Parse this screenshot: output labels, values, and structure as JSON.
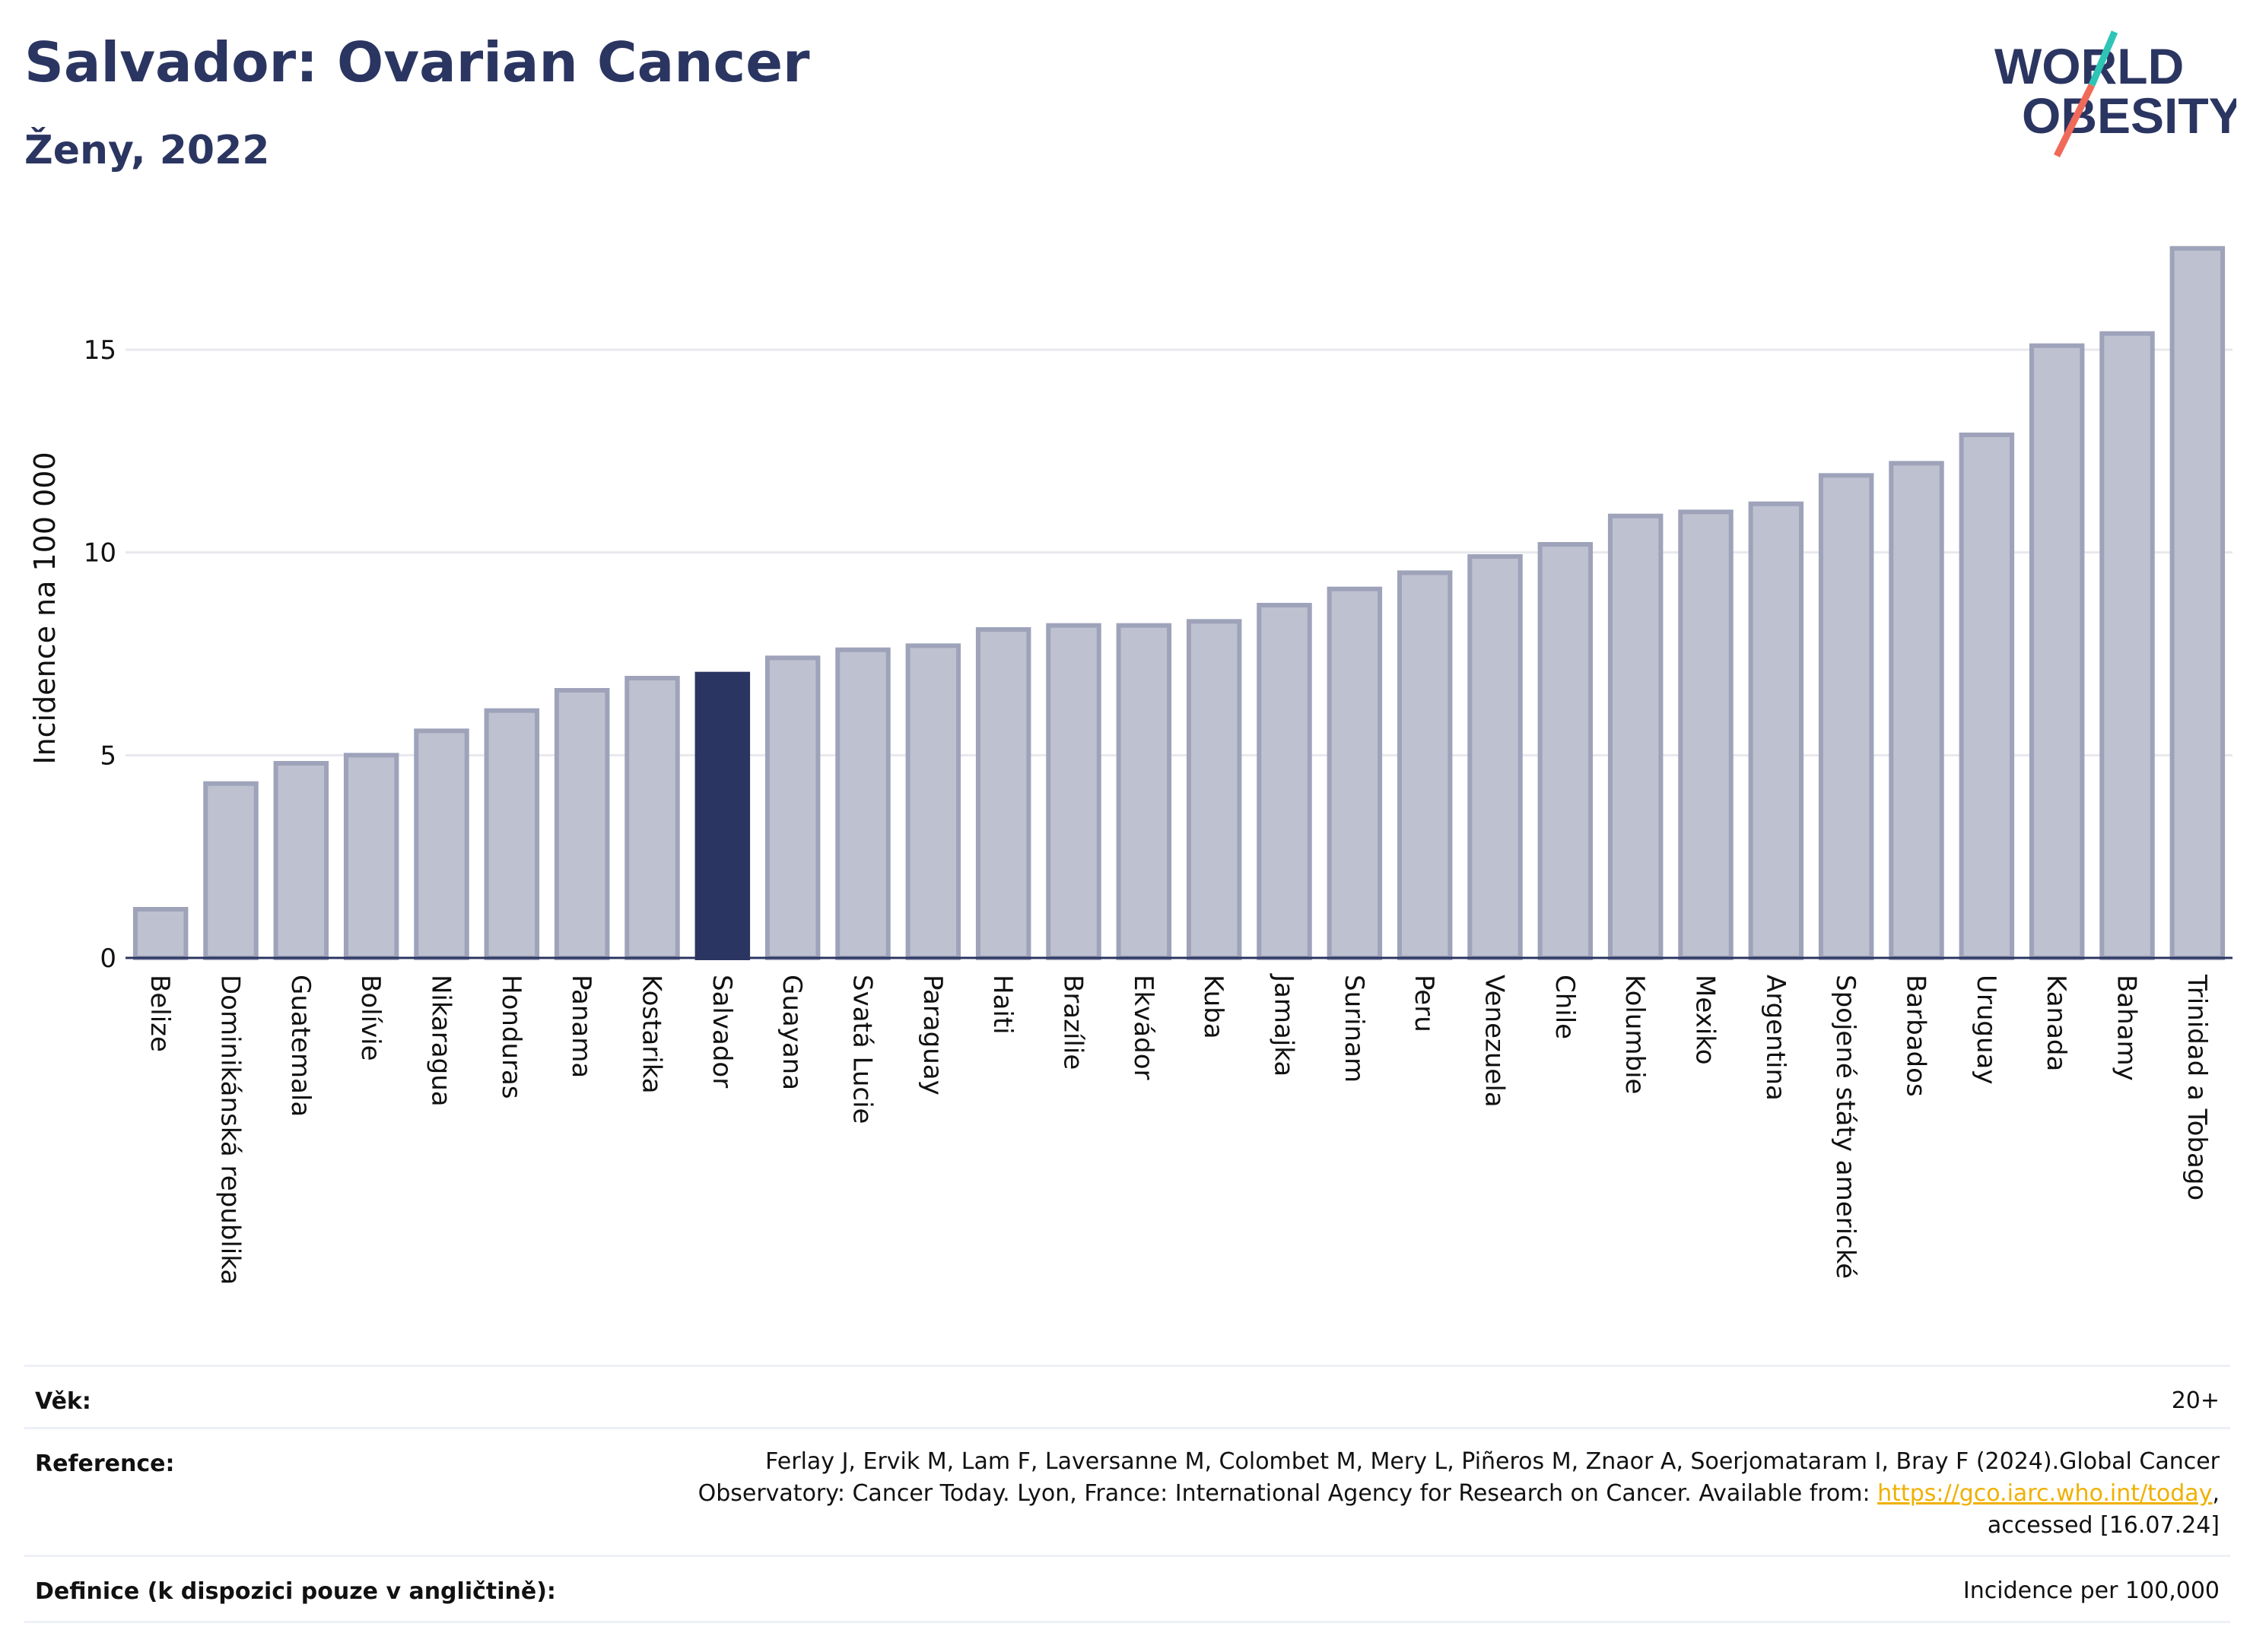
{
  "header": {
    "title": "Salvador: Ovarian Cancer",
    "subtitle": "Ženy, 2022",
    "logo_line1": "WORLD",
    "logo_line2": "OBESITY"
  },
  "chart_data": {
    "type": "bar",
    "ylabel": "Incidence na 100 000",
    "xlabel": "",
    "ylim": [
      0,
      18
    ],
    "yticks": [
      0,
      5,
      10,
      15
    ],
    "grid": true,
    "highlight_category": "Salvador",
    "colors": {
      "bar": "#bec1cf",
      "bar_border": "#9ea3ba",
      "highlight": "#2b3561",
      "grid": "#e8e8ee",
      "axis": "#2b3561"
    },
    "categories": [
      "Belize",
      "Dominikánská republika",
      "Guatemala",
      "Bolívie",
      "Nikaragua",
      "Honduras",
      "Panama",
      "Kostarika",
      "Salvador",
      "Guayana",
      "Svatá Lucie",
      "Paraguay",
      "Haiti",
      "Brazílie",
      "Ekvádor",
      "Kuba",
      "Jamajka",
      "Surinam",
      "Peru",
      "Venezuela",
      "Chile",
      "Kolumbie",
      "Mexiko",
      "Argentina",
      "Spojené státy americké",
      "Barbados",
      "Uruguay",
      "Kanada",
      "Bahamy",
      "Trinidad a Tobago"
    ],
    "values": [
      1.2,
      4.3,
      4.8,
      5.0,
      5.6,
      6.1,
      6.6,
      6.9,
      7.0,
      7.4,
      7.6,
      7.7,
      8.1,
      8.2,
      8.2,
      8.3,
      8.7,
      9.1,
      9.5,
      9.9,
      10.2,
      10.9,
      11.0,
      11.2,
      11.9,
      12.2,
      12.9,
      15.1,
      15.4,
      17.5
    ]
  },
  "info": {
    "age_label": "Věk:",
    "age_value": "20+",
    "reference_label": "Reference:",
    "reference_line1": "Ferlay J, Ervik M, Lam F, Laversanne M, Colombet M, Mery L, Piñeros M, Znaor A, Soerjomataram I, Bray F (2024).Global Cancer",
    "reference_line2_prefix": "Observatory: Cancer Today. Lyon, France: International Agency for Research on Cancer. Available from: ",
    "reference_link": "https://gco.iarc.who.int/today",
    "reference_line2_suffix": ",",
    "reference_line3": "accessed [16.07.24]",
    "definition_label": "Definice (k dispozici pouze v angličtině):",
    "definition_value": "Incidence per 100,000"
  }
}
